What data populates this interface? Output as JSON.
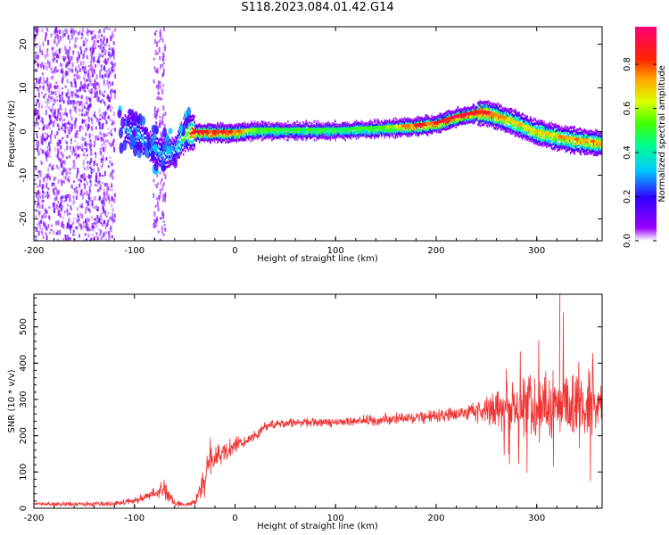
{
  "title": "S118.2023.084.01.42.G14",
  "chart_data": [
    {
      "type": "heatmap",
      "title": "S118.2023.084.01.42.G14",
      "xlabel": "Height of straight line (km)",
      "ylabel": "Frequency (Hz)",
      "xlim": [
        -200,
        365
      ],
      "ylim": [
        -25,
        24
      ],
      "x_ticks": [
        "-200",
        "-100",
        "0",
        "100",
        "200",
        "300"
      ],
      "y_ticks": [
        "-20",
        "-10",
        "0",
        "10",
        "20"
      ],
      "colorbar": {
        "label": "Normalized spectral amplitude",
        "range": [
          0.0,
          0.97
        ],
        "ticks": [
          "0.0",
          "0.2",
          "0.4",
          "0.6",
          "0.8"
        ],
        "colormap": "rainbow (violet-blue-cyan-green-yellow-red-magenta)"
      },
      "ridge": {
        "description": "peak frequency track",
        "x": [
          -110,
          -100,
          -90,
          -80,
          -70,
          -60,
          -50,
          -40,
          -20,
          0,
          20,
          50,
          100,
          150,
          180,
          200,
          220,
          240,
          250,
          270,
          300,
          330,
          365
        ],
        "y": [
          1,
          0,
          -2,
          -4,
          -5,
          -4,
          0,
          0,
          0,
          0,
          0.5,
          0.5,
          0.5,
          1,
          1.5,
          2,
          3.5,
          4.5,
          4.5,
          3,
          0,
          -1.5,
          -2.5
        ],
        "peak_amplitude": [
          0.3,
          0.35,
          0.3,
          0.3,
          0.3,
          0.3,
          0.6,
          0.9,
          0.85,
          0.8,
          0.55,
          0.5,
          0.5,
          0.55,
          0.85,
          0.85,
          0.9,
          0.95,
          0.9,
          0.7,
          0.7,
          0.75,
          0.75
        ]
      },
      "noise_region": {
        "x_from": -200,
        "x_to": -120,
        "amplitude": 0.1
      }
    },
    {
      "type": "line",
      "xlabel": "Height of straight line (km)",
      "ylabel": "SNR (10 * v/v)",
      "xlim": [
        -200,
        365
      ],
      "ylim": [
        0,
        590
      ],
      "x_ticks": [
        "-200",
        "-100",
        "0",
        "100",
        "200",
        "300"
      ],
      "y_ticks": [
        "0",
        "100",
        "200",
        "300",
        "400",
        "500"
      ],
      "color": "#ee3333",
      "envelope": {
        "x": [
          -200,
          -120,
          -100,
          -80,
          -70,
          -60,
          -50,
          -40,
          -30,
          -25,
          -20,
          0,
          20,
          30,
          40,
          50,
          100,
          150,
          200,
          240,
          260,
          280,
          300,
          320,
          340,
          365
        ],
        "mean": [
          12,
          12,
          20,
          40,
          55,
          15,
          10,
          15,
          80,
          150,
          140,
          170,
          200,
          225,
          230,
          235,
          238,
          245,
          255,
          265,
          275,
          285,
          280,
          285,
          280,
          285
        ],
        "noise": [
          6,
          6,
          10,
          15,
          25,
          10,
          5,
          10,
          40,
          60,
          40,
          25,
          15,
          12,
          12,
          12,
          12,
          15,
          18,
          25,
          50,
          70,
          90,
          100,
          100,
          90
        ]
      },
      "max_point": {
        "x": 323,
        "y": 590
      }
    }
  ]
}
